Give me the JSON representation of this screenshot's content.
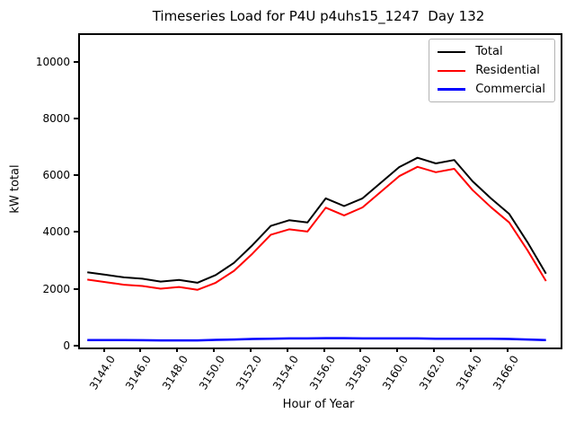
{
  "chart_data": {
    "type": "line",
    "title": "Timeseries Load for P4U p4uhs15_1247  Day 132",
    "xlabel": "Hour of Year",
    "ylabel": "kW total",
    "grid": false,
    "legend_position": "upper right",
    "xlim": [
      3142.6,
      3168.8
    ],
    "ylim": [
      0,
      11000
    ],
    "x": [
      3143,
      3144,
      3145,
      3146,
      3147,
      3148,
      3149,
      3150,
      3151,
      3152,
      3153,
      3154,
      3155,
      3156,
      3157,
      3158,
      3159,
      3160,
      3161,
      3162,
      3163,
      3164,
      3165,
      3166,
      3167,
      3168
    ],
    "series": [
      {
        "name": "Total",
        "color": "#000000",
        "line_width": 2,
        "values": [
          2650,
          2560,
          2470,
          2420,
          2320,
          2380,
          2280,
          2550,
          2980,
          3600,
          4280,
          4480,
          4400,
          5250,
          4980,
          5250,
          5800,
          6350,
          6680,
          6480,
          6600,
          5850,
          5250,
          4700,
          3700,
          2600
        ]
      },
      {
        "name": "Residential",
        "color": "#ff0000",
        "line_width": 2,
        "values": [
          2390,
          2300,
          2210,
          2165,
          2070,
          2130,
          2030,
          2280,
          2700,
          3300,
          3970,
          4160,
          4080,
          4920,
          4650,
          4930,
          5480,
          6030,
          6360,
          6170,
          6290,
          5540,
          4940,
          4400,
          3420,
          2340
        ]
      },
      {
        "name": "Commercial",
        "color": "#0000ff",
        "line_width": 2.5,
        "values": [
          260,
          260,
          260,
          255,
          250,
          250,
          250,
          270,
          280,
          300,
          310,
          320,
          320,
          330,
          330,
          320,
          320,
          320,
          320,
          310,
          310,
          310,
          310,
          300,
          280,
          260
        ]
      }
    ],
    "xticks": {
      "values": [
        3144,
        3146,
        3148,
        3150,
        3152,
        3154,
        3156,
        3158,
        3160,
        3162,
        3164,
        3166
      ],
      "labels": [
        "3144.0",
        "3146.0",
        "3148.0",
        "3150.0",
        "3152.0",
        "3154.0",
        "3156.0",
        "3158.0",
        "3160.0",
        "3162.0",
        "3164.0",
        "3166.0"
      ]
    },
    "yticks": {
      "values": [
        0,
        2000,
        4000,
        6000,
        8000,
        10000
      ],
      "labels": [
        "0",
        "2000",
        "4000",
        "6000",
        "8000",
        "10000"
      ]
    }
  }
}
